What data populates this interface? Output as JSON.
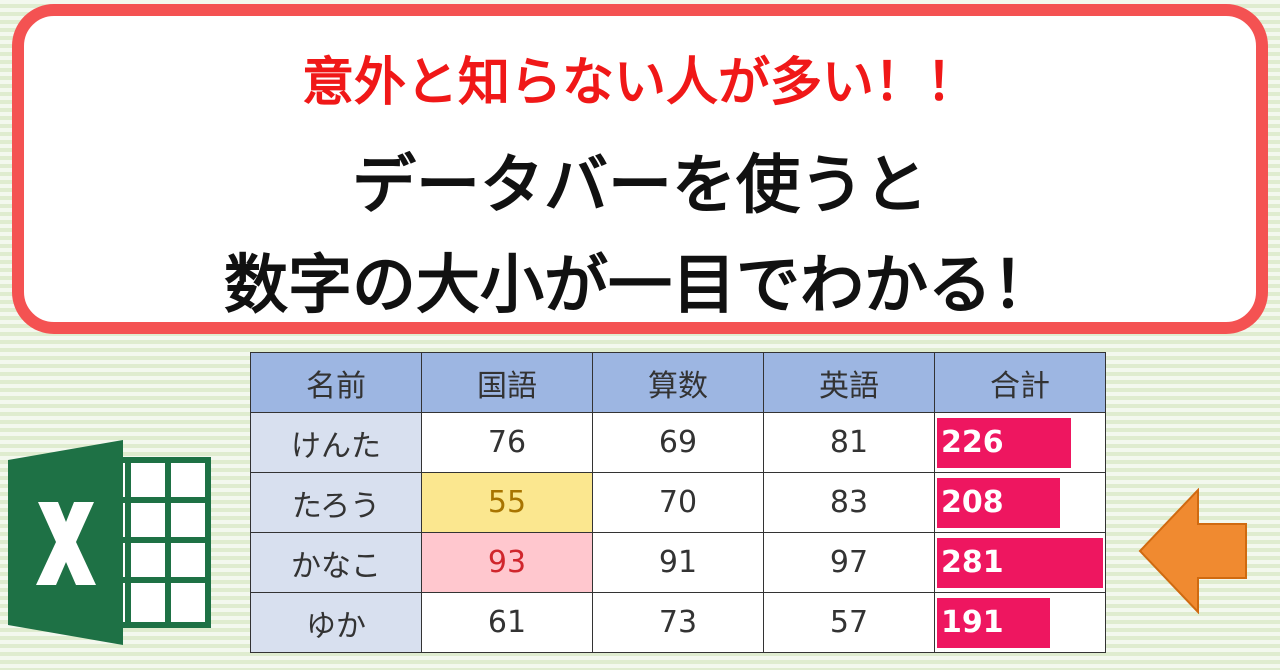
{
  "header": {
    "line1": "意外と知らない人が多い！！",
    "line2": "データバーを使うと",
    "line3": "数字の大小が一目でわかる！"
  },
  "table": {
    "columns": [
      "名前",
      "国語",
      "算数",
      "英語",
      "合計"
    ],
    "rows": [
      [
        "けんた",
        76,
        69,
        81,
        226
      ],
      [
        "たろう",
        55,
        70,
        83,
        208
      ],
      [
        "かなこ",
        93,
        91,
        97,
        281
      ],
      [
        "ゆか",
        61,
        73,
        57,
        191
      ]
    ],
    "databar_color": "#ee1660"
  }
}
